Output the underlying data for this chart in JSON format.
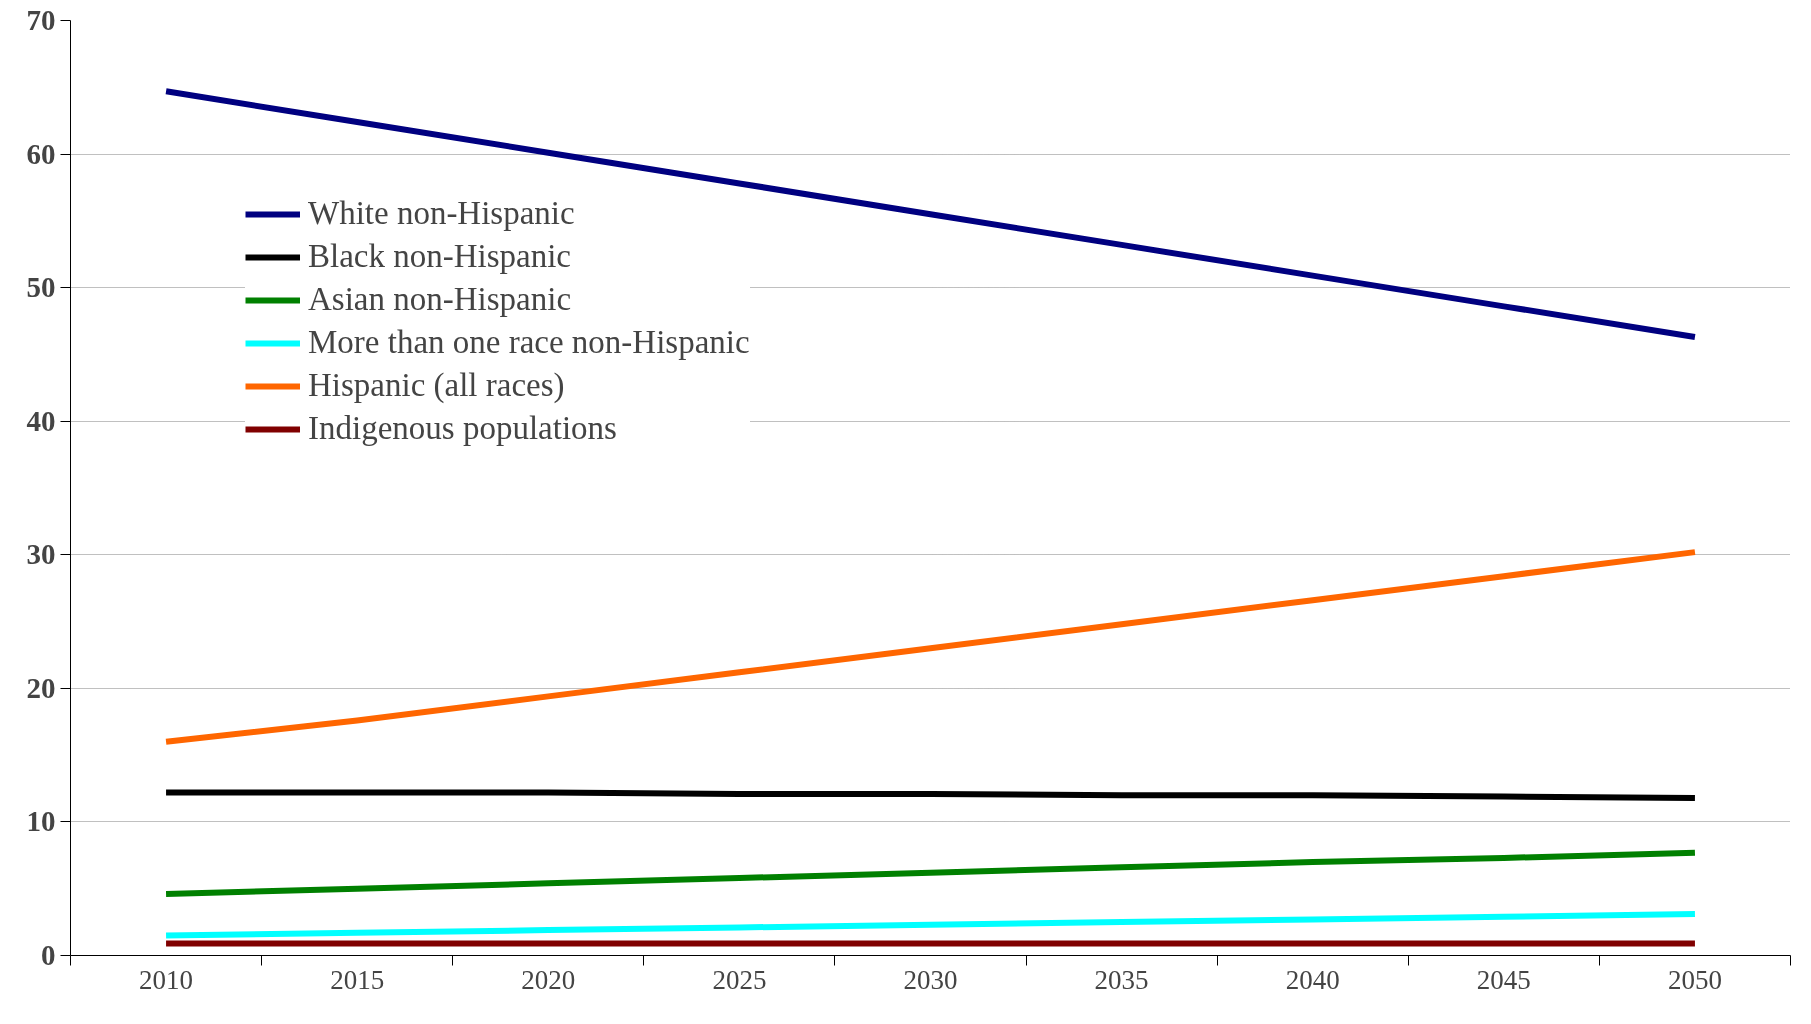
{
  "chart_data": {
    "type": "line",
    "categories": [
      "2010",
      "2015",
      "2020",
      "2025",
      "2030",
      "2035",
      "2040",
      "2045",
      "2050"
    ],
    "ylim": [
      0,
      70
    ],
    "yticks": [
      0,
      10,
      20,
      30,
      40,
      50,
      60,
      70
    ],
    "grid": "y",
    "legend": "top left",
    "marker": "none",
    "line_style": "solid",
    "series": [
      {
        "name": "White non-Hispanic",
        "color": "#000080",
        "values": [
          64.7,
          62.4,
          60.1,
          57.8,
          55.5,
          53.2,
          50.9,
          48.6,
          46.3
        ]
      },
      {
        "name": "Black non-Hispanic",
        "color": "#000000",
        "values": [
          12.2,
          12.2,
          12.2,
          12.1,
          12.1,
          12.0,
          12.0,
          11.9,
          11.8
        ]
      },
      {
        "name": "Asian non-Hispanic",
        "color": "#008000",
        "values": [
          4.6,
          5.0,
          5.4,
          5.8,
          6.2,
          6.6,
          7.0,
          7.3,
          7.7
        ]
      },
      {
        "name": "More than one race non-Hispanic",
        "color": "#00ffff",
        "values": [
          1.5,
          1.7,
          1.9,
          2.1,
          2.3,
          2.5,
          2.7,
          2.9,
          3.1
        ]
      },
      {
        "name": "Hispanic (all races)",
        "color": "#ff6600",
        "values": [
          16.0,
          17.6,
          19.4,
          21.2,
          23.0,
          24.8,
          26.6,
          28.4,
          30.2
        ]
      },
      {
        "name": "Indigenous populations",
        "color": "#800000",
        "values": [
          0.9,
          0.9,
          0.9,
          0.9,
          0.9,
          0.9,
          0.9,
          0.9,
          0.9
        ]
      }
    ]
  }
}
